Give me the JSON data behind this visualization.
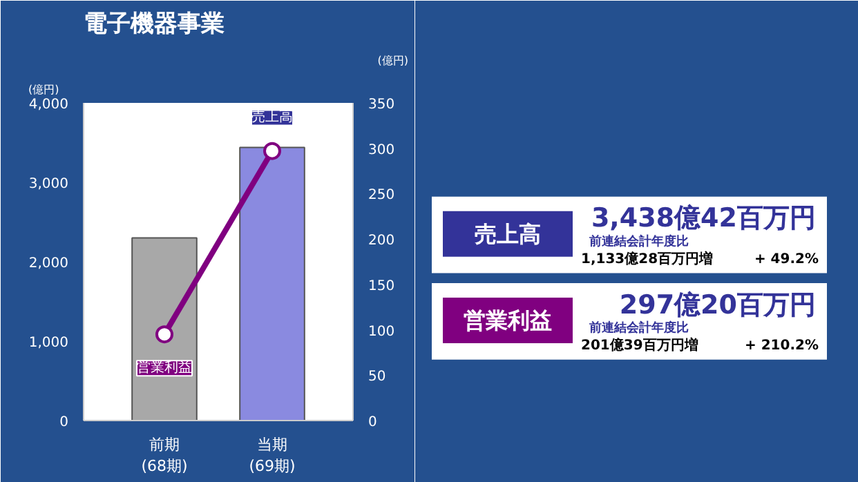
{
  "chart_data": {
    "type": "bar",
    "title": "電子機器事業",
    "ylabel": "(億円)",
    "y2label": "(億円)",
    "categories": [
      "前期\n(68期)",
      "当期\n(69期)"
    ],
    "series": [
      {
        "name": "売上高",
        "colors": [
          "#a8a8a8",
          "#8a8ae0"
        ],
        "values": [
          2300,
          3440
        ]
      },
      {
        "name": "営業利益",
        "type": "line",
        "axis": "y2",
        "color": "#800080",
        "values": [
          95,
          297
        ]
      }
    ],
    "ylim": [
      0,
      4000
    ],
    "yticks": [
      0,
      {
        "value": 1000,
        "label": "1,000"
      },
      {
        "value": 2000,
        "label": "2,000"
      },
      {
        "value": 3000,
        "label": "3,000"
      },
      {
        "value": 4000,
        "label": "4,000"
      }
    ],
    "y2lim": [
      0,
      350
    ],
    "y2ticks": [
      0,
      50,
      100,
      150,
      200,
      250,
      300,
      350
    ],
    "marker": "circle",
    "grid": false,
    "annotations": [
      "売上高",
      "3,438億42百万円",
      "前連結会計年度比",
      "1,133億28百万円増",
      "+ 49.2%",
      "営業利益",
      "297億20百万円",
      "前連結会計年度比",
      "201億39百万円増",
      "+ 210.2%"
    ]
  }
}
